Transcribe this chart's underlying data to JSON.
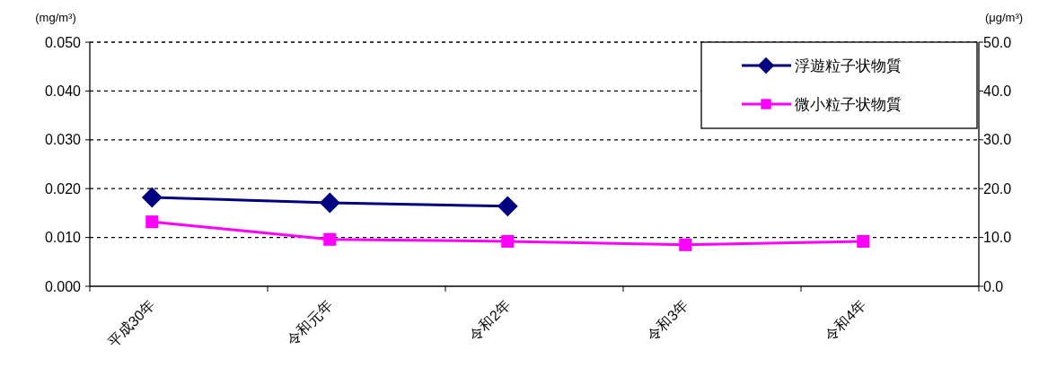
{
  "chart_data": {
    "type": "line",
    "ylabel": "(mg/m³)",
    "y2label": "(μg/m³)",
    "categories": [
      "平成30年",
      "令和元年",
      "令和2年",
      "令和3年",
      "令和4年"
    ],
    "series": [
      {
        "name": "浮遊粒子状物質",
        "color": "#000080",
        "marker": "diamond",
        "values": [
          0.0182,
          0.0171,
          0.0164,
          null,
          null
        ]
      },
      {
        "name": "微小粒子状物質",
        "color": "#ff00ff",
        "marker": "square",
        "axis": "y2",
        "values": [
          13.2,
          9.6,
          9.2,
          8.5,
          9.2
        ]
      }
    ],
    "ylim": [
      0,
      0.05
    ],
    "yticks": [
      {
        "value": 0,
        "label": "0.000"
      },
      {
        "value": 0.01,
        "label": "0.010"
      },
      {
        "value": 0.02,
        "label": "0.020"
      },
      {
        "value": 0.03,
        "label": "0.030"
      },
      {
        "value": 0.04,
        "label": "0.040"
      },
      {
        "value": 0.05,
        "label": "0.050"
      }
    ],
    "y2lim": [
      0,
      50
    ],
    "y2ticks": [
      {
        "value": 0,
        "label": "0.0"
      },
      {
        "value": 10,
        "label": "10.0"
      },
      {
        "value": 20,
        "label": "20.0"
      },
      {
        "value": 30,
        "label": "30.0"
      },
      {
        "value": 40,
        "label": "40.0"
      },
      {
        "value": 50,
        "label": "50.0"
      }
    ],
    "grid": "y",
    "legend": "top right",
    "line_style": "solid"
  }
}
